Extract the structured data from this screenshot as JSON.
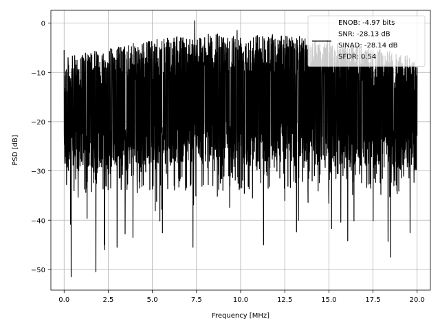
{
  "chart_data": {
    "type": "line",
    "xlabel": "Frequency [MHz]",
    "ylabel": "PSD [dB]",
    "xlim": [
      -0.75,
      20.75
    ],
    "ylim": [
      -54.2,
      2.6
    ],
    "x_ticks": [
      0.0,
      2.5,
      5.0,
      7.5,
      10.0,
      12.5,
      15.0,
      17.5,
      20.0
    ],
    "x_tick_labels": [
      "0.0",
      "2.5",
      "5.0",
      "7.5",
      "10.0",
      "12.5",
      "15.0",
      "17.5",
      "20.0"
    ],
    "y_ticks": [
      0,
      -10,
      -20,
      -30,
      -40,
      -50
    ],
    "y_tick_labels": [
      "0",
      "−10",
      "−20",
      "−30",
      "−40",
      "−50"
    ],
    "grid": true,
    "legend_position": "top-right",
    "series": [
      {
        "name": "ENOB: -4.97 bits\nSNR: -28.13 dB\nSINAD: -28.14 dB\nSFDR: 0.54",
        "legend_lines": [
          "ENOB: -4.97 bits",
          "SNR: -28.13 dB",
          "SINAD: -28.14 dB",
          "SFDR: 0.54"
        ],
        "color": "#000000",
        "x_range": [
          0.0,
          20.0
        ],
        "baseline_db": -18,
        "upper_envelope_db": [
          -7,
          -2
        ],
        "lower_envelope_db": [
          -30,
          -28
        ],
        "notable_points": [
          {
            "x": 0.0,
            "y": -5.5
          },
          {
            "x": 0.4,
            "y": -51.5
          },
          {
            "x": 1.8,
            "y": -50.5
          },
          {
            "x": 2.3,
            "y": -46.0
          },
          {
            "x": 3.0,
            "y": -45.5
          },
          {
            "x": 3.9,
            "y": -43.5
          },
          {
            "x": 7.3,
            "y": -45.5
          },
          {
            "x": 7.4,
            "y": 0.5
          },
          {
            "x": 11.3,
            "y": -45.0
          },
          {
            "x": 18.5,
            "y": -47.5
          },
          {
            "x": 9.8,
            "y": -1.5
          }
        ]
      }
    ]
  }
}
